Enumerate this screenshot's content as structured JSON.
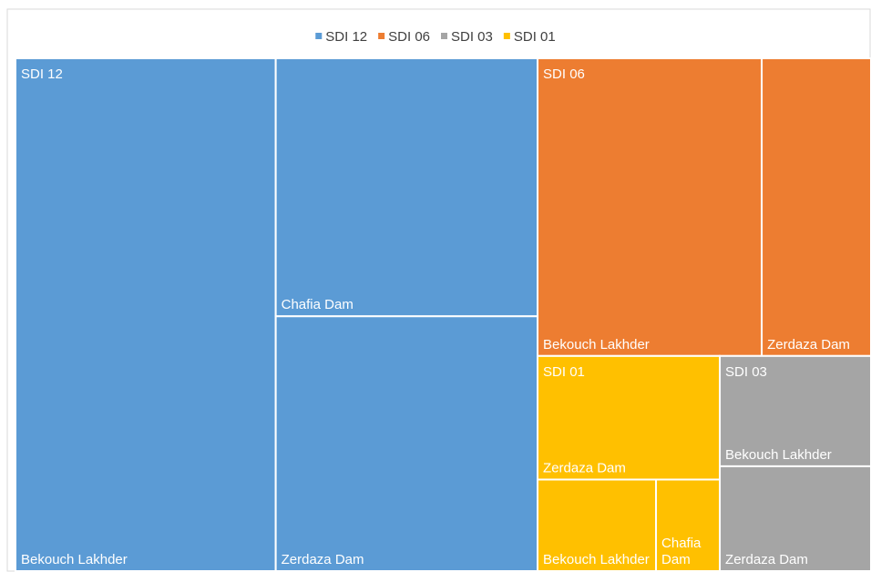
{
  "chart_data": {
    "type": "treemap",
    "series": [
      {
        "name": "SDI 12",
        "color": "#5b9bd5",
        "categories": [
          "Bekouch Lakhder",
          "Chafia Dam",
          "Zerdaza Dam"
        ],
        "values": [
          160,
          81,
          80
        ]
      },
      {
        "name": "SDI 06",
        "color": "#ed7d31",
        "categories": [
          "Bekouch Lakhder",
          "Zerdaza Dam"
        ],
        "values": [
          80,
          39
        ]
      },
      {
        "name": "SDI 03",
        "color": "#a5a5a5",
        "categories": [
          "Bekouch Lakhder",
          "Zerdaza Dam"
        ],
        "values": [
          20,
          19
        ]
      },
      {
        "name": "SDI 01",
        "color": "#ffc000",
        "categories": [
          "Zerdaza Dam",
          "Bekouch Lakhder",
          "Chafia Dam"
        ],
        "values": [
          27,
          13,
          7
        ]
      }
    ]
  }
}
